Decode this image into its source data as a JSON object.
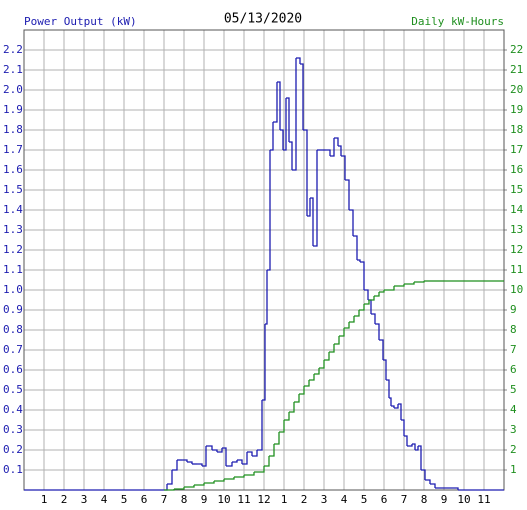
{
  "chart_data": {
    "type": "step",
    "title": "05/13/2020",
    "xlim": [
      0,
      24
    ],
    "xticks": [
      1,
      2,
      3,
      4,
      5,
      6,
      7,
      8,
      9,
      10,
      11,
      12,
      {
        "value": 13,
        "label": "1"
      },
      {
        "value": 14,
        "label": "2"
      },
      {
        "value": 15,
        "label": "3"
      },
      {
        "value": 16,
        "label": "4"
      },
      {
        "value": 17,
        "label": "5"
      },
      {
        "value": 18,
        "label": "6"
      },
      {
        "value": 19,
        "label": "7"
      },
      {
        "value": 20,
        "label": "8"
      },
      {
        "value": 21,
        "label": "9"
      },
      {
        "value": 22,
        "label": "10"
      },
      {
        "value": 23,
        "label": "11"
      }
    ],
    "ylim": [
      0,
      2.3
    ],
    "yticks": [
      0.1,
      0.2,
      0.3,
      0.4,
      0.5,
      0.6,
      0.7,
      0.8,
      0.9,
      {
        "value": 1,
        "label": "1.0"
      },
      1.1,
      1.2,
      1.3,
      1.4,
      1.5,
      1.6,
      1.7,
      1.8,
      1.9,
      {
        "value": 2,
        "label": "2.0"
      },
      2.1,
      2.2
    ],
    "y2lim": [
      0,
      23
    ],
    "y2ticks": [
      1,
      2,
      3,
      4,
      5,
      6,
      7,
      8,
      9,
      10,
      11,
      12,
      13,
      14,
      15,
      16,
      17,
      18,
      19,
      20,
      21,
      22
    ],
    "grid": true,
    "series": [
      {
        "name": "Power Output (kW)",
        "color": "#1c1cb0",
        "axis": "y",
        "x": [
          0,
          7.1,
          7.15,
          7.4,
          7.65,
          7.9,
          8.15,
          8.4,
          8.65,
          8.9,
          9.1,
          9.4,
          9.65,
          9.9,
          10.1,
          10.4,
          10.65,
          10.9,
          11.15,
          11.4,
          11.65,
          11.9,
          12.05,
          12.15,
          12.3,
          12.45,
          12.65,
          12.8,
          12.95,
          13.1,
          13.25,
          13.4,
          13.6,
          13.8,
          13.95,
          14.15,
          14.3,
          14.45,
          14.65,
          14.9,
          15.1,
          15.3,
          15.5,
          15.7,
          15.85,
          16.05,
          16.25,
          16.45,
          16.65,
          16.8,
          17.0,
          17.2,
          17.35,
          17.55,
          17.75,
          17.95,
          18.1,
          18.25,
          18.35,
          18.5,
          18.7,
          18.85,
          19.0,
          19.15,
          19.4,
          19.55,
          19.7,
          19.85,
          20.05,
          20.3,
          20.55,
          21.7
        ],
        "values": [
          0,
          0,
          0.03,
          0.1,
          0.15,
          0.15,
          0.14,
          0.13,
          0.13,
          0.12,
          0.22,
          0.2,
          0.19,
          0.21,
          0.12,
          0.14,
          0.15,
          0.13,
          0.19,
          0.17,
          0.2,
          0.45,
          0.83,
          1.1,
          1.7,
          1.84,
          2.04,
          1.8,
          1.7,
          1.96,
          1.74,
          1.6,
          2.16,
          2.13,
          1.8,
          1.37,
          1.46,
          1.22,
          1.7,
          1.7,
          1.7,
          1.67,
          1.76,
          1.72,
          1.67,
          1.55,
          1.4,
          1.27,
          1.15,
          1.14,
          1.0,
          0.95,
          0.88,
          0.83,
          0.75,
          0.65,
          0.55,
          0.46,
          0.42,
          0.41,
          0.43,
          0.35,
          0.27,
          0.22,
          0.23,
          0.2,
          0.22,
          0.1,
          0.05,
          0.03,
          0.01,
          0
        ]
      },
      {
        "name": "Daily kW-Hours",
        "color": "#1f8f1f",
        "axis": "y2",
        "x": [
          7,
          7.5,
          8,
          8.5,
          9,
          9.5,
          10,
          10.5,
          11,
          11.5,
          12,
          12.25,
          12.5,
          12.75,
          13,
          13.25,
          13.5,
          13.75,
          14,
          14.25,
          14.5,
          14.75,
          15,
          15.25,
          15.5,
          15.75,
          16,
          16.25,
          16.5,
          16.75,
          17,
          17.25,
          17.5,
          17.75,
          18,
          18.5,
          19,
          19.5,
          20,
          20.5,
          21
        ],
        "values": [
          0,
          0.05,
          0.15,
          0.25,
          0.35,
          0.45,
          0.55,
          0.65,
          0.75,
          0.9,
          1.2,
          1.7,
          2.3,
          2.9,
          3.5,
          3.9,
          4.4,
          4.8,
          5.2,
          5.5,
          5.8,
          6.1,
          6.5,
          6.9,
          7.3,
          7.7,
          8.1,
          8.4,
          8.7,
          9.0,
          9.3,
          9.5,
          9.7,
          9.9,
          10.0,
          10.2,
          10.3,
          10.4,
          10.45,
          10.45,
          10.45
        ]
      }
    ]
  }
}
